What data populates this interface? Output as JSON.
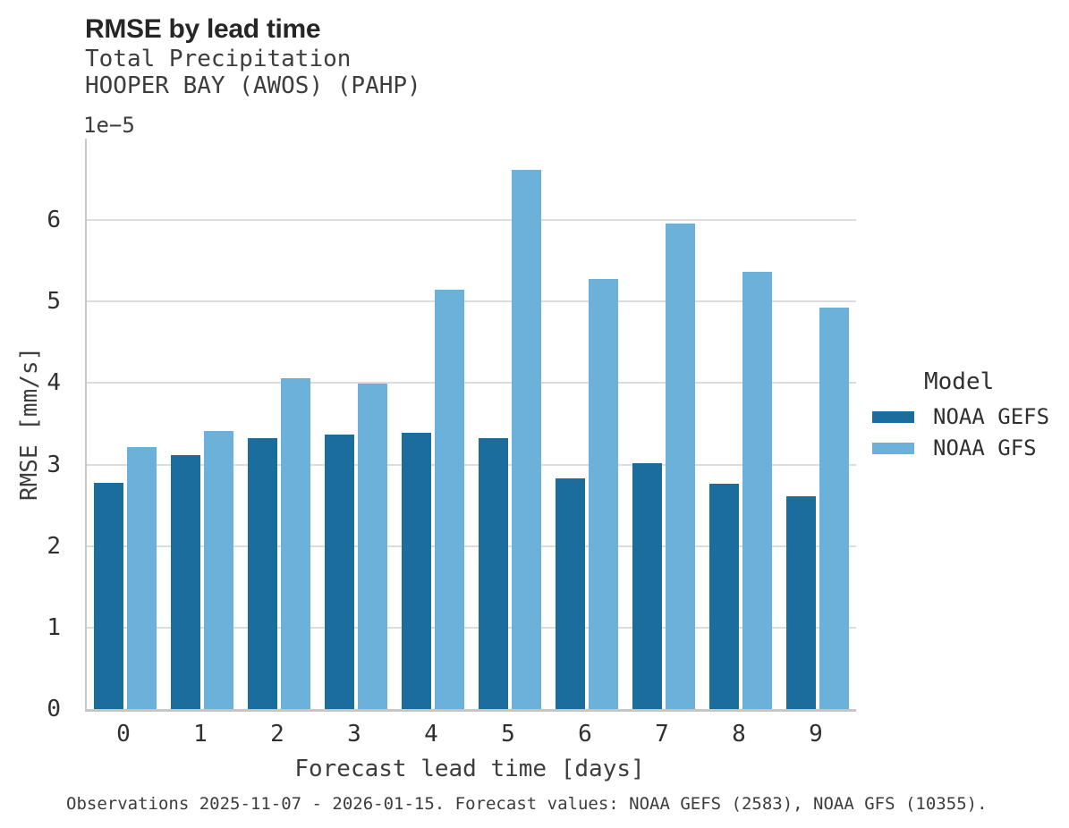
{
  "header": {
    "title": "RMSE by lead time",
    "subtitle_line1": "Total Precipitation",
    "subtitle_line2": "HOOPER BAY (AWOS) (PAHP)"
  },
  "axes": {
    "offset_text": "1e−5",
    "ylabel": "RMSE [mm/s]",
    "xlabel": "Forecast lead time [days]",
    "yticks": [
      0,
      1,
      2,
      3,
      4,
      5,
      6
    ]
  },
  "legend": {
    "title": "Model",
    "entries": [
      {
        "label": "NOAA GEFS",
        "color": "#1b6d9d"
      },
      {
        "label": "NOAA GFS",
        "color": "#6cb1d9"
      }
    ]
  },
  "footer": {
    "note": "Observations 2025-11-07 - 2026-01-15. Forecast values: NOAA GEFS (2583), NOAA GFS (10355)."
  },
  "colors": {
    "gridline": "#dcdcdc",
    "spine": "#c9c9c9",
    "noaa_gefs": "#1b6d9d",
    "noaa_gfs": "#6cb1d9"
  },
  "chart_data": {
    "type": "bar",
    "title": "RMSE by lead time",
    "subtitle": [
      "Total Precipitation",
      "HOOPER BAY (AWOS) (PAHP)"
    ],
    "xlabel": "Forecast lead time [days]",
    "ylabel": "RMSE [mm/s]",
    "units": "mm/s",
    "value_multiplier": "1e-5",
    "categories": [
      "0",
      "1",
      "2",
      "3",
      "4",
      "5",
      "6",
      "7",
      "8",
      "9"
    ],
    "ylim": [
      0,
      7
    ],
    "yticks": [
      0,
      1,
      2,
      3,
      4,
      5,
      6
    ],
    "grid": "horizontal",
    "legend_position": "right",
    "legend_title": "Model",
    "series": [
      {
        "name": "NOAA GEFS",
        "color": "#1b6d9d",
        "values": [
          2.78,
          3.12,
          3.33,
          3.37,
          3.39,
          3.33,
          2.83,
          3.02,
          2.77,
          2.61
        ]
      },
      {
        "name": "NOAA GFS",
        "color": "#6cb1d9",
        "values": [
          3.21,
          3.41,
          4.06,
          3.99,
          5.15,
          6.62,
          5.28,
          5.96,
          5.36,
          4.93
        ]
      }
    ]
  }
}
